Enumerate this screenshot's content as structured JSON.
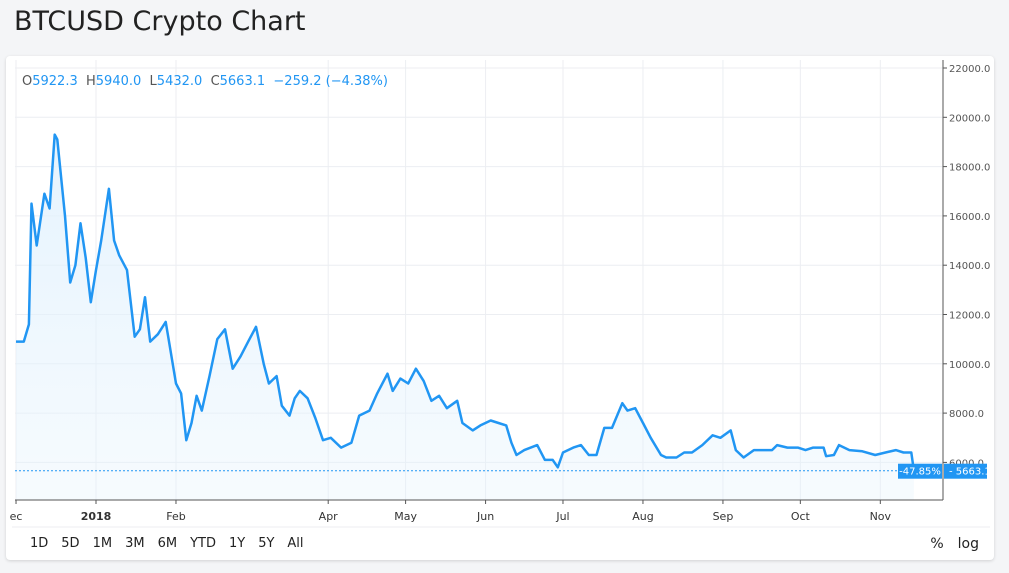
{
  "title": "BTCUSD Crypto Chart",
  "ohlc": {
    "o_label": "O",
    "o": "5922.3",
    "h_label": "H",
    "h": "5940.0",
    "l_label": "L",
    "l": "5432.0",
    "c_label": "C",
    "c": "5663.1",
    "change": "−259.2 (−4.38%)"
  },
  "ranges": [
    "1D",
    "5D",
    "1M",
    "3M",
    "6M",
    "YTD",
    "1Y",
    "5Y",
    "All"
  ],
  "scale_buttons": {
    "percent": "%",
    "log": "log"
  },
  "colors": {
    "line": "#2196f3",
    "fill": "#e3f2fd"
  },
  "chart_data": {
    "type": "area",
    "ylim": [
      4000,
      22500
    ],
    "y_ticks": [
      "6000.0",
      "8000.0",
      "10000.0",
      "12000.0",
      "14000.0",
      "16000.0",
      "18000.0",
      "20000.0",
      "22000.0"
    ],
    "x_ticks": [
      {
        "date": "2017-12-01",
        "label": "ec"
      },
      {
        "date": "2018-01-01",
        "label": "2018"
      },
      {
        "date": "2018-02-01",
        "label": "Feb"
      },
      {
        "date": "2018-04-01",
        "label": "Apr"
      },
      {
        "date": "2018-05-01",
        "label": "May"
      },
      {
        "date": "2018-06-01",
        "label": "Jun"
      },
      {
        "date": "2018-07-01",
        "label": "Jul"
      },
      {
        "date": "2018-08-01",
        "label": "Aug"
      },
      {
        "date": "2018-09-01",
        "label": "Sep"
      },
      {
        "date": "2018-10-01",
        "label": "Oct"
      },
      {
        "date": "2018-11-01",
        "label": "Nov"
      }
    ],
    "last_price_label": "5663.1",
    "last_pct_label": "-47.85%",
    "last_price": 5663.1,
    "grid": true,
    "points": [
      [
        "2017-12-01",
        10900
      ],
      [
        "2017-12-04",
        10900
      ],
      [
        "2017-12-06",
        11600
      ],
      [
        "2017-12-07",
        16500
      ],
      [
        "2017-12-09",
        14800
      ],
      [
        "2017-12-12",
        16900
      ],
      [
        "2017-12-14",
        16300
      ],
      [
        "2017-12-16",
        19300
      ],
      [
        "2017-12-17",
        19100
      ],
      [
        "2017-12-20",
        16000
      ],
      [
        "2017-12-22",
        13300
      ],
      [
        "2017-12-24",
        14000
      ],
      [
        "2017-12-26",
        15700
      ],
      [
        "2017-12-28",
        14300
      ],
      [
        "2017-12-30",
        12500
      ],
      [
        "2018-01-01",
        13800
      ],
      [
        "2018-01-03",
        15000
      ],
      [
        "2018-01-06",
        17100
      ],
      [
        "2018-01-08",
        15000
      ],
      [
        "2018-01-10",
        14400
      ],
      [
        "2018-01-13",
        13800
      ],
      [
        "2018-01-16",
        11100
      ],
      [
        "2018-01-18",
        11400
      ],
      [
        "2018-01-20",
        12700
      ],
      [
        "2018-01-22",
        10900
      ],
      [
        "2018-01-25",
        11200
      ],
      [
        "2018-01-28",
        11700
      ],
      [
        "2018-01-29",
        11100
      ],
      [
        "2018-02-01",
        9200
      ],
      [
        "2018-02-03",
        8800
      ],
      [
        "2018-02-05",
        6900
      ],
      [
        "2018-02-07",
        7600
      ],
      [
        "2018-02-09",
        8700
      ],
      [
        "2018-02-11",
        8100
      ],
      [
        "2018-02-14",
        9500
      ],
      [
        "2018-02-17",
        11000
      ],
      [
        "2018-02-20",
        11400
      ],
      [
        "2018-02-23",
        9800
      ],
      [
        "2018-02-26",
        10300
      ],
      [
        "2018-03-01",
        10900
      ],
      [
        "2018-03-04",
        11500
      ],
      [
        "2018-03-07",
        10000
      ],
      [
        "2018-03-09",
        9200
      ],
      [
        "2018-03-12",
        9500
      ],
      [
        "2018-03-14",
        8300
      ],
      [
        "2018-03-17",
        7900
      ],
      [
        "2018-03-19",
        8600
      ],
      [
        "2018-03-21",
        8900
      ],
      [
        "2018-03-24",
        8600
      ],
      [
        "2018-03-27",
        7800
      ],
      [
        "2018-03-30",
        6900
      ],
      [
        "2018-04-02",
        7000
      ],
      [
        "2018-04-06",
        6600
      ],
      [
        "2018-04-10",
        6800
      ],
      [
        "2018-04-13",
        7900
      ],
      [
        "2018-04-17",
        8100
      ],
      [
        "2018-04-20",
        8800
      ],
      [
        "2018-04-24",
        9600
      ],
      [
        "2018-04-26",
        8900
      ],
      [
        "2018-04-29",
        9400
      ],
      [
        "2018-05-02",
        9200
      ],
      [
        "2018-05-05",
        9800
      ],
      [
        "2018-05-08",
        9300
      ],
      [
        "2018-05-11",
        8500
      ],
      [
        "2018-05-14",
        8700
      ],
      [
        "2018-05-17",
        8200
      ],
      [
        "2018-05-21",
        8500
      ],
      [
        "2018-05-23",
        7600
      ],
      [
        "2018-05-27",
        7300
      ],
      [
        "2018-05-30",
        7500
      ],
      [
        "2018-06-03",
        7700
      ],
      [
        "2018-06-06",
        7600
      ],
      [
        "2018-06-09",
        7500
      ],
      [
        "2018-06-11",
        6800
      ],
      [
        "2018-06-13",
        6300
      ],
      [
        "2018-06-16",
        6500
      ],
      [
        "2018-06-21",
        6700
      ],
      [
        "2018-06-24",
        6100
      ],
      [
        "2018-06-27",
        6100
      ],
      [
        "2018-06-29",
        5800
      ],
      [
        "2018-07-01",
        6400
      ],
      [
        "2018-07-05",
        6600
      ],
      [
        "2018-07-08",
        6700
      ],
      [
        "2018-07-11",
        6300
      ],
      [
        "2018-07-14",
        6300
      ],
      [
        "2018-07-17",
        7400
      ],
      [
        "2018-07-20",
        7400
      ],
      [
        "2018-07-24",
        8400
      ],
      [
        "2018-07-26",
        8100
      ],
      [
        "2018-07-29",
        8200
      ],
      [
        "2018-08-01",
        7600
      ],
      [
        "2018-08-04",
        7000
      ],
      [
        "2018-08-08",
        6300
      ],
      [
        "2018-08-10",
        6200
      ],
      [
        "2018-08-14",
        6200
      ],
      [
        "2018-08-17",
        6400
      ],
      [
        "2018-08-20",
        6400
      ],
      [
        "2018-08-24",
        6700
      ],
      [
        "2018-08-28",
        7100
      ],
      [
        "2018-08-31",
        7000
      ],
      [
        "2018-09-04",
        7300
      ],
      [
        "2018-09-06",
        6500
      ],
      [
        "2018-09-09",
        6200
      ],
      [
        "2018-09-13",
        6500
      ],
      [
        "2018-09-16",
        6500
      ],
      [
        "2018-09-20",
        6500
      ],
      [
        "2018-09-22",
        6700
      ],
      [
        "2018-09-26",
        6600
      ],
      [
        "2018-09-30",
        6600
      ],
      [
        "2018-10-03",
        6500
      ],
      [
        "2018-10-06",
        6600
      ],
      [
        "2018-10-10",
        6600
      ],
      [
        "2018-10-11",
        6250
      ],
      [
        "2018-10-14",
        6300
      ],
      [
        "2018-10-16",
        6700
      ],
      [
        "2018-10-20",
        6500
      ],
      [
        "2018-10-25",
        6450
      ],
      [
        "2018-10-30",
        6300
      ],
      [
        "2018-11-03",
        6400
      ],
      [
        "2018-11-07",
        6500
      ],
      [
        "2018-11-10",
        6400
      ],
      [
        "2018-11-13",
        6400
      ],
      [
        "2018-11-14",
        5663
      ]
    ]
  }
}
